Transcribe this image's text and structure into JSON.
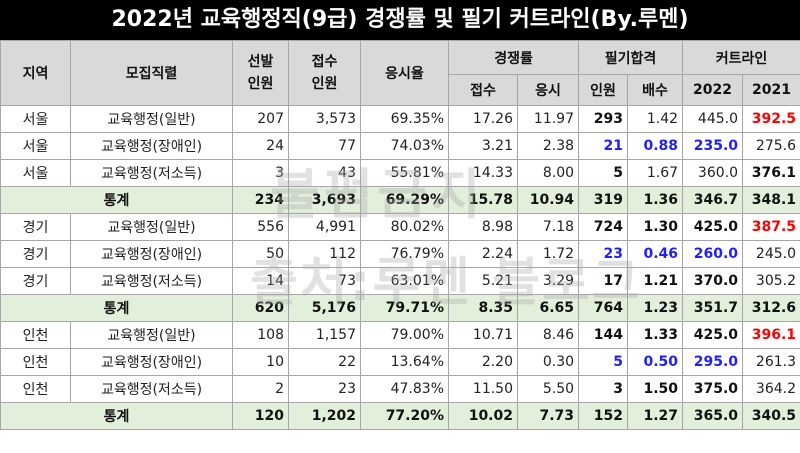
{
  "title": "2022년 교육행정직(9급) 경쟁률 및 필기 커트라인(By.루멘)",
  "headers": {
    "region": "지역",
    "position": "모집직렬",
    "selected": "선발\n인원",
    "applied": "접수\n인원",
    "exam_rate": "응시율",
    "competition": "경쟁률",
    "comp_applied": "접수",
    "comp_exam": "응시",
    "written_pass": "필기합격",
    "pass_count": "인원",
    "pass_ratio": "배수",
    "cutline": "커트라인",
    "year_2022": "2022",
    "year_2021": "2021"
  },
  "watermark": {
    "line1": "불펌금지",
    "line2": "출처:루멘 블로그"
  },
  "rows": [
    {
      "region": "서울",
      "position": "교육행정(일반)",
      "selected": "207",
      "applied": "3,573",
      "exam_rate": "69.35%",
      "comp_applied": "17.26",
      "comp_exam": "11.97",
      "pass_count": "293",
      "pass_ratio": "1.42",
      "cut2022": "445.0",
      "cut2021": "392.5",
      "pc_style": "b",
      "pr_style": "",
      "c22_style": "",
      "c21_style": "red"
    },
    {
      "region": "서울",
      "position": "교육행정(장애인)",
      "selected": "24",
      "applied": "77",
      "exam_rate": "74.03%",
      "comp_applied": "3.21",
      "comp_exam": "2.38",
      "pass_count": "21",
      "pass_ratio": "0.88",
      "cut2022": "235.0",
      "cut2021": "275.6",
      "pc_style": "blue",
      "pr_style": "blue",
      "c22_style": "blue",
      "c21_style": ""
    },
    {
      "region": "서울",
      "position": "교육행정(저소득)",
      "selected": "3",
      "applied": "43",
      "exam_rate": "55.81%",
      "comp_applied": "14.33",
      "comp_exam": "8.00",
      "pass_count": "5",
      "pass_ratio": "1.67",
      "cut2022": "360.0",
      "cut2021": "376.1",
      "pc_style": "b",
      "pr_style": "",
      "c22_style": "",
      "c21_style": "bb"
    },
    {
      "stat": true,
      "label": "통계",
      "selected": "234",
      "applied": "3,693",
      "exam_rate": "69.29%",
      "comp_applied": "15.78",
      "comp_exam": "10.94",
      "pass_count": "319",
      "pass_ratio": "1.36",
      "cut2022": "346.7",
      "cut2021": "348.1"
    },
    {
      "region": "경기",
      "position": "교육행정(일반)",
      "selected": "556",
      "applied": "4,991",
      "exam_rate": "80.02%",
      "comp_applied": "8.98",
      "comp_exam": "7.18",
      "pass_count": "724",
      "pass_ratio": "1.30",
      "cut2022": "425.0",
      "cut2021": "387.5",
      "pc_style": "b",
      "pr_style": "b",
      "c22_style": "bb",
      "c21_style": "red"
    },
    {
      "region": "경기",
      "position": "교육행정(장애인)",
      "selected": "50",
      "applied": "112",
      "exam_rate": "76.79%",
      "comp_applied": "2.24",
      "comp_exam": "1.72",
      "pass_count": "23",
      "pass_ratio": "0.46",
      "cut2022": "260.0",
      "cut2021": "245.0",
      "pc_style": "blue",
      "pr_style": "blue",
      "c22_style": "blue",
      "c21_style": ""
    },
    {
      "region": "경기",
      "position": "교육행정(저소득)",
      "selected": "14",
      "applied": "73",
      "exam_rate": "63.01%",
      "comp_applied": "5.21",
      "comp_exam": "3.29",
      "pass_count": "17",
      "pass_ratio": "1.21",
      "cut2022": "370.0",
      "cut2021": "305.2",
      "pc_style": "b",
      "pr_style": "b",
      "c22_style": "bb",
      "c21_style": ""
    },
    {
      "stat": true,
      "label": "통계",
      "selected": "620",
      "applied": "5,176",
      "exam_rate": "79.71%",
      "comp_applied": "8.35",
      "comp_exam": "6.65",
      "pass_count": "764",
      "pass_ratio": "1.23",
      "cut2022": "351.7",
      "cut2021": "312.6"
    },
    {
      "region": "인천",
      "position": "교육행정(일반)",
      "selected": "108",
      "applied": "1,157",
      "exam_rate": "79.00%",
      "comp_applied": "10.71",
      "comp_exam": "8.46",
      "pass_count": "144",
      "pass_ratio": "1.33",
      "cut2022": "425.0",
      "cut2021": "396.1",
      "pc_style": "b",
      "pr_style": "b",
      "c22_style": "bb",
      "c21_style": "red"
    },
    {
      "region": "인천",
      "position": "교육행정(장애인)",
      "selected": "10",
      "applied": "22",
      "exam_rate": "13.64%",
      "comp_applied": "2.20",
      "comp_exam": "0.30",
      "pass_count": "5",
      "pass_ratio": "0.50",
      "cut2022": "295.0",
      "cut2021": "261.3",
      "pc_style": "blue",
      "pr_style": "blue",
      "c22_style": "blue",
      "c21_style": ""
    },
    {
      "region": "인천",
      "position": "교육행정(저소득)",
      "selected": "2",
      "applied": "23",
      "exam_rate": "47.83%",
      "comp_applied": "11.50",
      "comp_exam": "5.50",
      "pass_count": "3",
      "pass_ratio": "1.50",
      "cut2022": "375.0",
      "cut2021": "364.2",
      "pc_style": "b",
      "pr_style": "b",
      "c22_style": "bb",
      "c21_style": ""
    },
    {
      "stat": true,
      "label": "통계",
      "selected": "120",
      "applied": "1,202",
      "exam_rate": "77.20%",
      "comp_applied": "10.02",
      "comp_exam": "7.73",
      "pass_count": "152",
      "pass_ratio": "1.27",
      "cut2022": "365.0",
      "cut2021": "340.5"
    }
  ]
}
